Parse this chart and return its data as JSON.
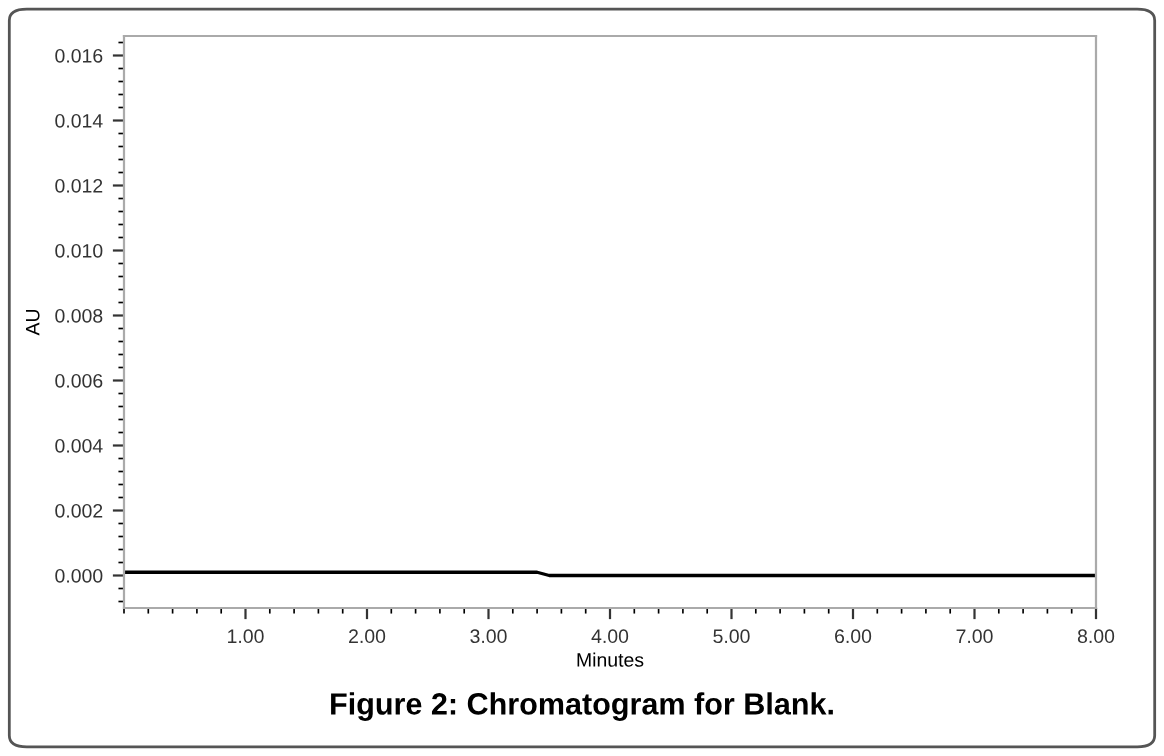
{
  "chart_data": {
    "type": "line",
    "xlabel": "Minutes",
    "ylabel": "AU",
    "annotations": [
      "Figure 2: Chromatogram for Blank."
    ],
    "x": [
      0.0,
      0.5,
      1.0,
      1.5,
      2.0,
      2.5,
      3.0,
      3.4,
      3.5,
      3.7,
      4.0,
      4.5,
      5.0,
      5.3,
      5.6,
      6.0,
      6.5,
      7.0,
      7.5,
      7.7,
      8.0
    ],
    "series": [
      {
        "color": "#000000",
        "values": [
          0.0001,
          0.0001,
          0.0001,
          0.0001,
          0.0001,
          0.0001,
          0.0001,
          0.0001,
          0.0,
          0.0,
          0.0,
          0.0,
          0.0,
          0.0,
          0.0,
          0.0,
          0.0,
          0.0,
          0.0,
          0.0,
          0.0
        ]
      }
    ],
    "xlim": [
      0.0,
      8.0
    ],
    "xticks": [
      {
        "value": 1.0,
        "label": "1.00"
      },
      {
        "value": 2.0,
        "label": "2.00"
      },
      {
        "value": 3.0,
        "label": "3.00"
      },
      {
        "value": 4.0,
        "label": "4.00"
      },
      {
        "value": 5.0,
        "label": "5.00"
      },
      {
        "value": 6.0,
        "label": "6.00"
      },
      {
        "value": 7.0,
        "label": "7.00"
      },
      {
        "value": 8.0,
        "label": "8.00"
      }
    ],
    "ylim": [
      -0.001,
      0.0166
    ],
    "yticks": [
      {
        "value": 0.0,
        "label": "0.000"
      },
      {
        "value": 0.002,
        "label": "0.002"
      },
      {
        "value": 0.004,
        "label": "0.004"
      },
      {
        "value": 0.006,
        "label": "0.006"
      },
      {
        "value": 0.008,
        "label": "0.008"
      },
      {
        "value": 0.01,
        "label": "0.010"
      },
      {
        "value": 0.012,
        "label": "0.012"
      },
      {
        "value": 0.014,
        "label": "0.014"
      },
      {
        "value": 0.016,
        "label": "0.016"
      }
    ],
    "grid": false,
    "marker": "none",
    "line_style": "solid"
  }
}
